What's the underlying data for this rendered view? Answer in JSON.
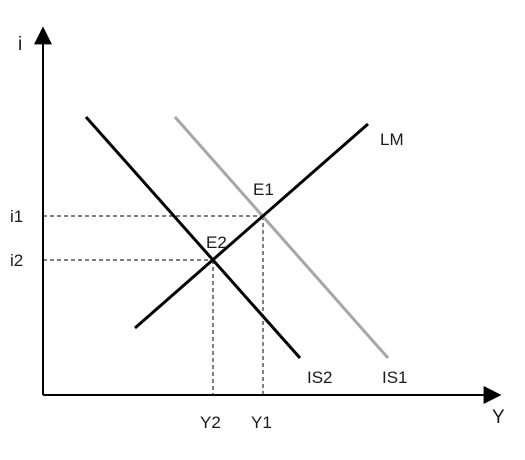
{
  "axes": {
    "y_label": "i",
    "x_label": "Y"
  },
  "curves": {
    "lm": {
      "label": "LM",
      "color": "#000000"
    },
    "is1": {
      "label": "IS1",
      "color": "#a6a6a6"
    },
    "is2": {
      "label": "IS2",
      "color": "#000000"
    }
  },
  "points": {
    "e1": {
      "label": "E1"
    },
    "e2": {
      "label": "E2"
    }
  },
  "ticks": {
    "i1": "i1",
    "i2": "i2",
    "y1": "Y1",
    "y2": "Y2"
  }
}
